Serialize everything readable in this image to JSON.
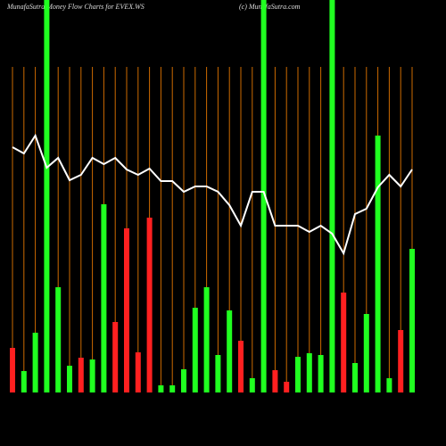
{
  "chart_data": {
    "type": "bar",
    "title": "MunafaSutra  Money Flow  Charts for EVEX.WS",
    "subtitle": "(c) MunafaSutra.com",
    "categories": [
      null,
      null,
      null,
      null,
      null,
      null,
      null,
      null,
      null,
      null,
      null,
      null,
      null,
      null,
      null,
      null,
      null,
      null,
      null,
      null,
      null,
      null,
      null,
      null,
      null,
      null,
      null,
      null,
      null,
      null,
      null,
      null,
      null,
      null,
      null,
      null
    ],
    "values": [
      50,
      24,
      67,
      440,
      118,
      30,
      39,
      37,
      211,
      79,
      184,
      45,
      196,
      8,
      8,
      26,
      95,
      118,
      42,
      92,
      58,
      16,
      440,
      25,
      12,
      40,
      44,
      42,
      440,
      112,
      33,
      88,
      288,
      16,
      70,
      161
    ],
    "colors": [
      "#ff2020",
      "#20ff20",
      "#20ff20",
      "#20ff20",
      "#20ff20",
      "#20ff20",
      "#ff2020",
      "#20ff20",
      "#20ff20",
      "#ff2020",
      "#ff2020",
      "#ff2020",
      "#ff2020",
      "#20ff20",
      "#20ff20",
      "#20ff20",
      "#20ff20",
      "#20ff20",
      "#20ff20",
      "#20ff20",
      "#ff2020",
      "#20ff20",
      "#20ff20",
      "#ff2020",
      "#ff2020",
      "#20ff20",
      "#20ff20",
      "#20ff20",
      "#20ff20",
      "#ff2020",
      "#20ff20",
      "#20ff20",
      "#20ff20",
      "#20ff20",
      "#ff2020",
      "#20ff20"
    ],
    "line": {
      "color": "#ffffff",
      "values": [
        275,
        268,
        288,
        252,
        263,
        238,
        244,
        263,
        256,
        263,
        250,
        244,
        251,
        237,
        237,
        225,
        231,
        231,
        225,
        210,
        187,
        225,
        225,
        187,
        187,
        187,
        180,
        187,
        178,
        156,
        200,
        206,
        230,
        244,
        231,
        250
      ]
    },
    "grid_color": "#cc6a00",
    "ylim": [
      0,
      440
    ]
  }
}
